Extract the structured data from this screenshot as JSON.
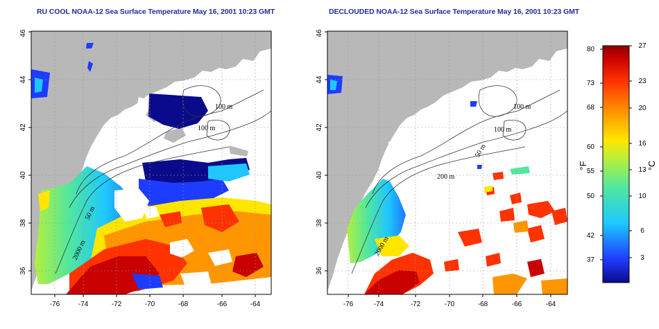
{
  "panels": [
    {
      "title": "RU COOL NOAA-12 Sea Surface Temperature May 16, 2001 10:23 GMT",
      "contour_labels": [
        "100 m",
        "100 m",
        "50 m",
        "2000 m"
      ]
    },
    {
      "title": "DECLOUDED NOAA-12 Sea Surface Temperature May 16, 2001 10:23 GMT",
      "contour_labels": [
        "100 m",
        "100 m",
        "50 m",
        "200 m",
        "2000 m"
      ]
    }
  ],
  "axes": {
    "lon_ticks": [
      "-76",
      "-74",
      "-72",
      "-70",
      "-68",
      "-66",
      "-64"
    ],
    "lat_ticks": [
      "36",
      "38",
      "40",
      "42",
      "44",
      "46"
    ],
    "lon_range": [
      -77.2,
      -63.0
    ],
    "lat_range": [
      35.0,
      46.0
    ]
  },
  "colorbar": {
    "f_label": "°F",
    "c_label": "°C",
    "f_ticks": [
      "80",
      "73",
      "68",
      "60",
      "55",
      "50",
      "42",
      "37"
    ],
    "c_ticks": [
      "27",
      "23",
      "20",
      "16",
      "13",
      "10",
      "6",
      "3"
    ],
    "colors": [
      "#0a0a8c",
      "#1e3cff",
      "#1ec8ff",
      "#50e6a0",
      "#b4f03c",
      "#ffe600",
      "#ff9600",
      "#ff3200",
      "#c80000",
      "#8c0000"
    ]
  },
  "colors": {
    "land": "#b8b8b8",
    "title": "#1f2f9c"
  }
}
